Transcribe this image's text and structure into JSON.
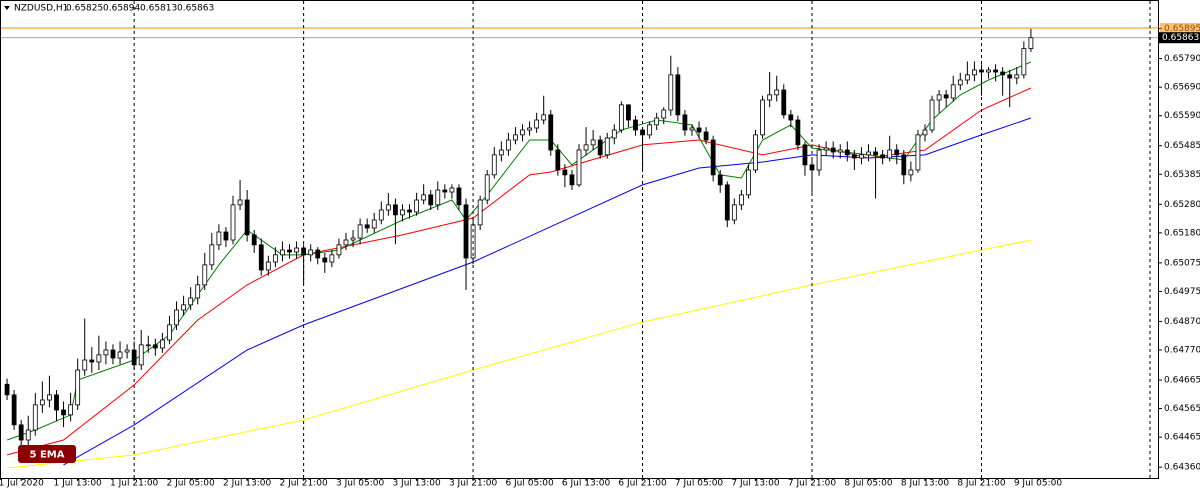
{
  "chart_data": {
    "type": "candlestick",
    "symbol": "NZDUSD,H1",
    "annotation": "5 EMA",
    "up_color": "#ffffff",
    "down_color": "#000000",
    "grid": false,
    "xlim": [
      -1,
      163
    ],
    "ylim": [
      0.64322,
      0.65995
    ],
    "yticks": [
      {
        "value": 0.6436,
        "label": "0.64360"
      },
      0.64465,
      0.64565,
      0.64665,
      {
        "value": 0.6477,
        "label": "0.64770"
      },
      {
        "value": 0.6487,
        "label": "0.64870"
      },
      0.64975,
      0.65075,
      {
        "value": 0.6518,
        "label": "0.65180"
      },
      {
        "value": 0.6528,
        "label": "0.65280"
      },
      0.65385,
      0.65485,
      {
        "value": 0.6559,
        "label": "0.65590"
      },
      {
        "value": 0.6569,
        "label": "0.65690"
      },
      {
        "value": 0.6579,
        "label": "0.65790"
      },
      0.65895
    ],
    "xticks": [
      {
        "value": 2,
        "label": "1 Jul 2020"
      },
      {
        "value": 10,
        "label": "1 Jul 13:00"
      },
      {
        "value": 18,
        "label": "1 Jul 21:00"
      },
      {
        "value": 26,
        "label": "2 Jul 05:00"
      },
      {
        "value": 34,
        "label": "2 Jul 13:00"
      },
      {
        "value": 42,
        "label": "2 Jul 21:00"
      },
      {
        "value": 50,
        "label": "3 Jul 05:00"
      },
      {
        "value": 58,
        "label": "3 Jul 13:00"
      },
      {
        "value": 66,
        "label": "3 Jul 21:00"
      },
      {
        "value": 74,
        "label": "6 Jul 05:00"
      },
      {
        "value": 82,
        "label": "6 Jul 13:00"
      },
      {
        "value": 90,
        "label": "6 Jul 21:00"
      },
      {
        "value": 98,
        "label": "7 Jul 05:00"
      },
      {
        "value": 106,
        "label": "7 Jul 13:00"
      },
      {
        "value": 114,
        "label": "7 Jul 21:00"
      },
      {
        "value": 122,
        "label": "8 Jul 05:00"
      },
      {
        "value": 130,
        "label": "8 Jul 13:00"
      },
      {
        "value": 138,
        "label": "8 Jul 21:00"
      },
      {
        "value": 146,
        "label": "9 Jul 05:00"
      }
    ],
    "hlines": [
      {
        "value": 0.65897,
        "color": "#ff8c00"
      }
    ],
    "candles": [
      [
        0.6465,
        0.6467,
        0.64595,
        0.64613
      ],
      [
        0.64613,
        0.6463,
        0.6449,
        0.64508
      ],
      [
        0.64508,
        0.64525,
        0.644,
        0.64455
      ],
      [
        0.64455,
        0.6454,
        0.6443,
        0.6449
      ],
      [
        0.6449,
        0.6462,
        0.6447,
        0.64578
      ],
      [
        0.64578,
        0.6466,
        0.6455,
        0.64595
      ],
      [
        0.64595,
        0.6468,
        0.6457,
        0.64613
      ],
      [
        0.64613,
        0.6463,
        0.6452,
        0.6456
      ],
      [
        0.6456,
        0.6459,
        0.645,
        0.64543
      ],
      [
        0.64543,
        0.6462,
        0.6452,
        0.64578
      ],
      [
        0.64578,
        0.6474,
        0.6456,
        0.647
      ],
      [
        0.647,
        0.6488,
        0.6468,
        0.64735
      ],
      [
        0.64735,
        0.6478,
        0.6469,
        0.64728
      ],
      [
        0.64728,
        0.6482,
        0.647,
        0.64753
      ],
      [
        0.64753,
        0.648,
        0.6472,
        0.6477
      ],
      [
        0.6477,
        0.6479,
        0.6472,
        0.64742
      ],
      [
        0.64742,
        0.648,
        0.6472,
        0.64763
      ],
      [
        0.64763,
        0.6479,
        0.6474,
        0.6477
      ],
      [
        0.6477,
        0.648,
        0.647,
        0.64718
      ],
      [
        0.64718,
        0.6484,
        0.647,
        0.64788
      ],
      [
        0.64788,
        0.6482,
        0.6476,
        0.64788
      ],
      [
        0.64788,
        0.6481,
        0.6475,
        0.64777
      ],
      [
        0.64777,
        0.6483,
        0.6476,
        0.64805
      ],
      [
        0.64805,
        0.6489,
        0.6479,
        0.64858
      ],
      [
        0.64858,
        0.6494,
        0.6484,
        0.6491
      ],
      [
        0.6491,
        0.6496,
        0.6489,
        0.64928
      ],
      [
        0.64928,
        0.6499,
        0.6491,
        0.64952
      ],
      [
        0.64952,
        0.6503,
        0.6493,
        0.64998
      ],
      [
        0.64998,
        0.6511,
        0.6498,
        0.65068
      ],
      [
        0.65068,
        0.6518,
        0.6505,
        0.65138
      ],
      [
        0.65138,
        0.6521,
        0.6512,
        0.65183
      ],
      [
        0.65183,
        0.652,
        0.6513,
        0.65155
      ],
      [
        0.65155,
        0.6531,
        0.6514,
        0.65278
      ],
      [
        0.65278,
        0.65365,
        0.6526,
        0.65295
      ],
      [
        0.65295,
        0.6533,
        0.6515,
        0.65173
      ],
      [
        0.65173,
        0.6519,
        0.6511,
        0.65138
      ],
      [
        0.65138,
        0.6516,
        0.6503,
        0.6505
      ],
      [
        0.6505,
        0.651,
        0.6503,
        0.65078
      ],
      [
        0.65078,
        0.6513,
        0.6506,
        0.65103
      ],
      [
        0.65103,
        0.6515,
        0.6508,
        0.6512
      ],
      [
        0.6512,
        0.6514,
        0.6509,
        0.65113
      ],
      [
        0.65113,
        0.6515,
        0.6509,
        0.65127
      ],
      [
        0.65127,
        0.6514,
        0.65,
        0.65103
      ],
      [
        0.65103,
        0.6514,
        0.6508,
        0.6512
      ],
      [
        0.6512,
        0.6513,
        0.6507,
        0.65092
      ],
      [
        0.65092,
        0.6511,
        0.6504,
        0.65078
      ],
      [
        0.65078,
        0.6512,
        0.6506,
        0.65103
      ],
      [
        0.65103,
        0.6516,
        0.6509,
        0.65138
      ],
      [
        0.65138,
        0.6518,
        0.6512,
        0.65155
      ],
      [
        0.65155,
        0.6519,
        0.6513,
        0.65162
      ],
      [
        0.65162,
        0.6523,
        0.6514,
        0.65208
      ],
      [
        0.65208,
        0.6523,
        0.6518,
        0.65197
      ],
      [
        0.65197,
        0.6525,
        0.6518,
        0.65225
      ],
      [
        0.65225,
        0.6529,
        0.6521,
        0.6526
      ],
      [
        0.6526,
        0.6532,
        0.6524,
        0.65278
      ],
      [
        0.65278,
        0.653,
        0.6514,
        0.65243
      ],
      [
        0.65243,
        0.6528,
        0.6522,
        0.6526
      ],
      [
        0.6526,
        0.6528,
        0.6523,
        0.65253
      ],
      [
        0.65253,
        0.6532,
        0.6524,
        0.65295
      ],
      [
        0.65295,
        0.6535,
        0.6528,
        0.65313
      ],
      [
        0.65313,
        0.6533,
        0.6526,
        0.65278
      ],
      [
        0.65278,
        0.6536,
        0.6526,
        0.6533
      ],
      [
        0.6533,
        0.6535,
        0.653,
        0.65323
      ],
      [
        0.65323,
        0.6535,
        0.653,
        0.65337
      ],
      [
        0.65337,
        0.6535,
        0.6526,
        0.65278
      ],
      [
        0.65278,
        0.653,
        0.6498,
        0.65092
      ],
      [
        0.65092,
        0.6523,
        0.6507,
        0.65208
      ],
      [
        0.65208,
        0.6531,
        0.6519,
        0.65295
      ],
      [
        0.65295,
        0.654,
        0.6528,
        0.65383
      ],
      [
        0.65383,
        0.6548,
        0.6537,
        0.65453
      ],
      [
        0.65453,
        0.655,
        0.6543,
        0.6547
      ],
      [
        0.6547,
        0.6553,
        0.6545,
        0.65505
      ],
      [
        0.65505,
        0.6555,
        0.6549,
        0.65523
      ],
      [
        0.65523,
        0.6556,
        0.655,
        0.6554
      ],
      [
        0.6554,
        0.6557,
        0.6552,
        0.65547
      ],
      [
        0.65547,
        0.656,
        0.6553,
        0.65575
      ],
      [
        0.65575,
        0.6566,
        0.6556,
        0.65593
      ],
      [
        0.65593,
        0.6561,
        0.6545,
        0.6547
      ],
      [
        0.6547,
        0.6549,
        0.6538,
        0.654
      ],
      [
        0.654,
        0.6542,
        0.6534,
        0.65383
      ],
      [
        0.65383,
        0.654,
        0.6533,
        0.65348
      ],
      [
        0.65348,
        0.6549,
        0.6534,
        0.6547
      ],
      [
        0.6547,
        0.6555,
        0.6545,
        0.65488
      ],
      [
        0.65488,
        0.6554,
        0.6547,
        0.65505
      ],
      [
        0.65505,
        0.6552,
        0.6544,
        0.65453
      ],
      [
        0.65453,
        0.6553,
        0.6544,
        0.65512
      ],
      [
        0.65512,
        0.6556,
        0.6549,
        0.6554
      ],
      [
        0.6554,
        0.6564,
        0.6553,
        0.65628
      ],
      [
        0.65628,
        0.6563,
        0.6555,
        0.65575
      ],
      [
        0.65575,
        0.6559,
        0.6552,
        0.6554
      ],
      [
        0.6554,
        0.6555,
        0.654,
        0.65523
      ],
      [
        0.65523,
        0.6557,
        0.6551,
        0.65558
      ],
      [
        0.65558,
        0.656,
        0.6554,
        0.65582
      ],
      [
        0.65582,
        0.6562,
        0.6556,
        0.6561
      ],
      [
        0.6561,
        0.658,
        0.6559,
        0.65733
      ],
      [
        0.65733,
        0.6576,
        0.6557,
        0.65593
      ],
      [
        0.65593,
        0.6561,
        0.6552,
        0.6554
      ],
      [
        0.6554,
        0.6556,
        0.6552,
        0.65547
      ],
      [
        0.65547,
        0.6557,
        0.6551,
        0.65533
      ],
      [
        0.65533,
        0.6555,
        0.6549,
        0.65505
      ],
      [
        0.65505,
        0.6552,
        0.6536,
        0.65383
      ],
      [
        0.65383,
        0.654,
        0.6532,
        0.65348
      ],
      [
        0.65348,
        0.6536,
        0.652,
        0.65225
      ],
      [
        0.65225,
        0.653,
        0.6521,
        0.65278
      ],
      [
        0.65278,
        0.6533,
        0.6526,
        0.65313
      ],
      [
        0.65313,
        0.6542,
        0.653,
        0.654
      ],
      [
        0.654,
        0.6554,
        0.6539,
        0.65523
      ],
      [
        0.65523,
        0.6566,
        0.6551,
        0.65645
      ],
      [
        0.65645,
        0.65743,
        0.6562,
        0.65663
      ],
      [
        0.65663,
        0.6573,
        0.6564,
        0.6568
      ],
      [
        0.6568,
        0.657,
        0.6558,
        0.65593
      ],
      [
        0.65593,
        0.6561,
        0.6555,
        0.65575
      ],
      [
        0.65575,
        0.6559,
        0.6547,
        0.65488
      ],
      [
        0.65488,
        0.655,
        0.6538,
        0.65418
      ],
      [
        0.65418,
        0.6544,
        0.6532,
        0.654
      ],
      [
        0.654,
        0.6549,
        0.6538,
        0.6547
      ],
      [
        0.6547,
        0.655,
        0.6545,
        0.65477
      ],
      [
        0.65477,
        0.655,
        0.6544,
        0.65463
      ],
      [
        0.65463,
        0.6549,
        0.6544,
        0.6547
      ],
      [
        0.6547,
        0.655,
        0.6543,
        0.65453
      ],
      [
        0.65453,
        0.6547,
        0.654,
        0.65442
      ],
      [
        0.65442,
        0.6548,
        0.6542,
        0.65453
      ],
      [
        0.65453,
        0.6549,
        0.6543,
        0.65463
      ],
      [
        0.65463,
        0.6548,
        0.653,
        0.65453
      ],
      [
        0.65453,
        0.6547,
        0.6542,
        0.65442
      ],
      [
        0.65442,
        0.6552,
        0.6543,
        0.6547
      ],
      [
        0.6547,
        0.6549,
        0.6542,
        0.65453
      ],
      [
        0.65453,
        0.6547,
        0.6535,
        0.65383
      ],
      [
        0.65383,
        0.6543,
        0.6536,
        0.654
      ],
      [
        0.654,
        0.6554,
        0.6539,
        0.65523
      ],
      [
        0.65523,
        0.6556,
        0.655,
        0.6554
      ],
      [
        0.6554,
        0.6566,
        0.6553,
        0.65645
      ],
      [
        0.65645,
        0.6568,
        0.656,
        0.65663
      ],
      [
        0.65663,
        0.6568,
        0.6562,
        0.65652
      ],
      [
        0.65652,
        0.6573,
        0.6564,
        0.65698
      ],
      [
        0.65698,
        0.6574,
        0.6568,
        0.65715
      ],
      [
        0.65715,
        0.6578,
        0.657,
        0.65733
      ],
      [
        0.65733,
        0.6578,
        0.6571,
        0.6575
      ],
      [
        0.6575,
        0.6577,
        0.6566,
        0.65743
      ],
      [
        0.65743,
        0.6576,
        0.6572,
        0.6575
      ],
      [
        0.6575,
        0.6577,
        0.6571,
        0.65743
      ],
      [
        0.65743,
        0.6576,
        0.6566,
        0.65733
      ],
      [
        0.65733,
        0.6575,
        0.6562,
        0.65722
      ],
      [
        0.65722,
        0.6576,
        0.657,
        0.65733
      ],
      [
        0.65733,
        0.6585,
        0.6572,
        0.65825
      ],
      [
        0.65825,
        0.65894,
        0.65813,
        0.65863
      ]
    ],
    "series": [
      {
        "color": "#ffff00",
        "x": [
          0,
          18,
          42,
          66,
          90,
          114,
          138,
          145
        ],
        "values": [
          0.64357,
          0.64403,
          0.64525,
          0.647,
          0.64868,
          0.64998,
          0.6512,
          0.65155
        ]
      },
      {
        "color": "#0000ff",
        "x": [
          8,
          18,
          34,
          42,
          66,
          90,
          98,
          107,
          114,
          122,
          130,
          138,
          145
        ],
        "values": [
          0.64368,
          0.64508,
          0.6477,
          0.64858,
          0.65078,
          0.65348,
          0.65407,
          0.65428,
          0.65453,
          0.65442,
          0.65453,
          0.65523,
          0.65582
        ]
      },
      {
        "color": "#ff0000",
        "x": [
          0,
          8,
          18,
          27,
          34,
          42,
          56,
          66,
          74,
          77,
          90,
          98,
          107,
          114,
          122,
          130,
          138,
          145
        ],
        "values": [
          0.64403,
          0.64455,
          0.64648,
          0.64875,
          0.64998,
          0.65103,
          0.65173,
          0.65232,
          0.65383,
          0.65393,
          0.65488,
          0.65505,
          0.65453,
          0.65488,
          0.65442,
          0.6547,
          0.6561,
          0.65687
        ]
      },
      {
        "color": "#008000",
        "x": [
          0,
          4,
          9,
          10,
          18,
          23,
          30,
          34,
          39,
          42,
          47,
          56,
          63,
          65,
          68,
          74,
          77,
          80,
          87,
          92,
          97,
          101,
          104,
          107,
          111,
          114,
          122,
          127,
          131,
          135,
          139,
          145
        ],
        "values": [
          0.64455,
          0.6449,
          0.64543,
          0.64665,
          0.64735,
          0.64823,
          0.65068,
          0.6519,
          0.65103,
          0.65103,
          0.6512,
          0.65225,
          0.65295,
          0.65225,
          0.65313,
          0.65505,
          0.65505,
          0.65418,
          0.6554,
          0.65575,
          0.65558,
          0.65383,
          0.65372,
          0.65505,
          0.65558,
          0.65477,
          0.65453,
          0.65435,
          0.65575,
          0.65663,
          0.65715,
          0.65778
        ]
      }
    ]
  }
}
